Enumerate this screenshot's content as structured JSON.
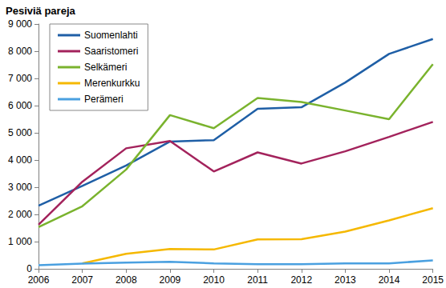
{
  "chart_data": {
    "type": "line",
    "title": "Pesiviä pareja",
    "categories": [
      "2006",
      "2007",
      "2008",
      "2009",
      "2010",
      "2011",
      "2012",
      "2013",
      "2014",
      "2015"
    ],
    "series": [
      {
        "name": "Suomenlahti",
        "color": "#1f5fa6",
        "values": [
          2320,
          3050,
          3800,
          4680,
          4730,
          5880,
          5940,
          6850,
          7900,
          8450
        ]
      },
      {
        "name": "Saaristomeri",
        "color": "#a3235c",
        "values": [
          1620,
          3200,
          4430,
          4700,
          3580,
          4280,
          3870,
          4320,
          4850,
          5400
        ]
      },
      {
        "name": "Selkämeri",
        "color": "#7ab32e",
        "values": [
          1530,
          2300,
          3650,
          5650,
          5170,
          6280,
          6130,
          5820,
          5500,
          7520
        ]
      },
      {
        "name": "Merenkurkku",
        "color": "#f5b800",
        "values": [
          null,
          200,
          550,
          730,
          710,
          1080,
          1090,
          1370,
          1780,
          2230
        ]
      },
      {
        "name": "Perämeri",
        "color": "#4aa0e0",
        "values": [
          130,
          190,
          230,
          260,
          200,
          170,
          170,
          200,
          200,
          310
        ]
      }
    ],
    "ylim": [
      0,
      9000
    ],
    "yticks": [
      0,
      {
        "value": 1000,
        "label": "1 000"
      },
      {
        "value": 2000,
        "label": "2 000"
      },
      {
        "value": 3000,
        "label": "3 000"
      },
      {
        "value": 4000,
        "label": "4 000"
      },
      {
        "value": 5000,
        "label": "5 000"
      },
      {
        "value": 6000,
        "label": "6 000"
      },
      {
        "value": 7000,
        "label": "7 000"
      },
      {
        "value": 8000,
        "label": "8 000"
      },
      {
        "value": 9000,
        "label": "9 000"
      }
    ],
    "grid": false,
    "legend": "upper left"
  }
}
